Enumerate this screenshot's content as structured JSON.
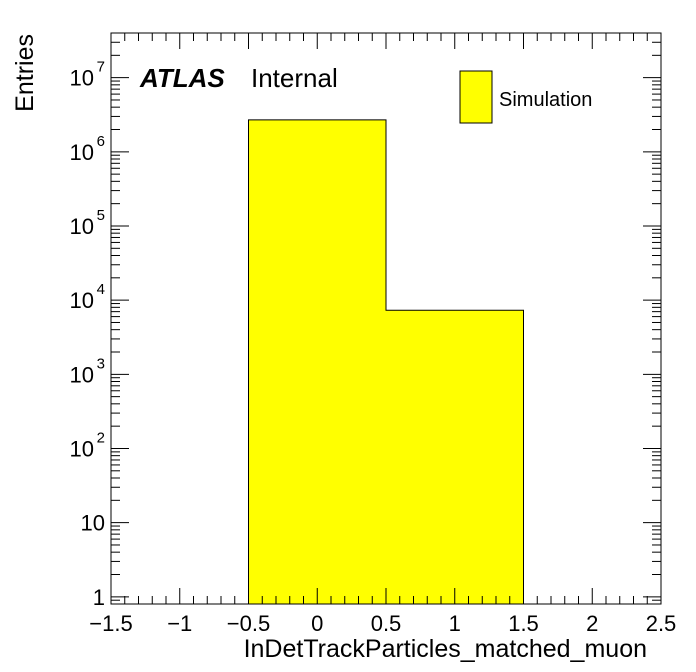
{
  "chart_data": {
    "type": "bar",
    "histogram": true,
    "bin_edges": [
      -0.5,
      0.5,
      1.5
    ],
    "values": [
      2700000,
      7300
    ],
    "series": [
      {
        "name": "Simulation",
        "values": [
          2700000,
          7300
        ],
        "color": "#ffff00"
      }
    ],
    "xlabel": "InDetTrackParticles_matched_muon",
    "ylabel": "Entries",
    "xlim": [
      -1.5,
      2.5
    ],
    "ylim": [
      0.8,
      40000000
    ],
    "yscale": "log",
    "x_ticks": [
      -1.5,
      -1,
      -0.5,
      0,
      0.5,
      1,
      1.5,
      2,
      2.5
    ],
    "x_tick_labels": [
      "−1.5",
      "−1",
      "−0.5",
      "0",
      "0.5",
      "1",
      "1.5",
      "2",
      "2.5"
    ],
    "y_ticks": [
      1,
      10,
      100,
      1000,
      10000,
      100000,
      1000000,
      10000000
    ],
    "y_tick_labels": [
      {
        "base": "1",
        "exp": ""
      },
      {
        "base": "10",
        "exp": ""
      },
      {
        "base": "10",
        "exp": "2"
      },
      {
        "base": "10",
        "exp": "3"
      },
      {
        "base": "10",
        "exp": "4"
      },
      {
        "base": "10",
        "exp": "5"
      },
      {
        "base": "10",
        "exp": "6"
      },
      {
        "base": "10",
        "exp": "7"
      }
    ],
    "grid": false,
    "legend_position": "top-right"
  },
  "annotation": {
    "experiment": "ATLAS",
    "status": "Internal"
  },
  "colors": {
    "fill": "#ffff00",
    "line": "#000000",
    "background": "#ffffff"
  }
}
